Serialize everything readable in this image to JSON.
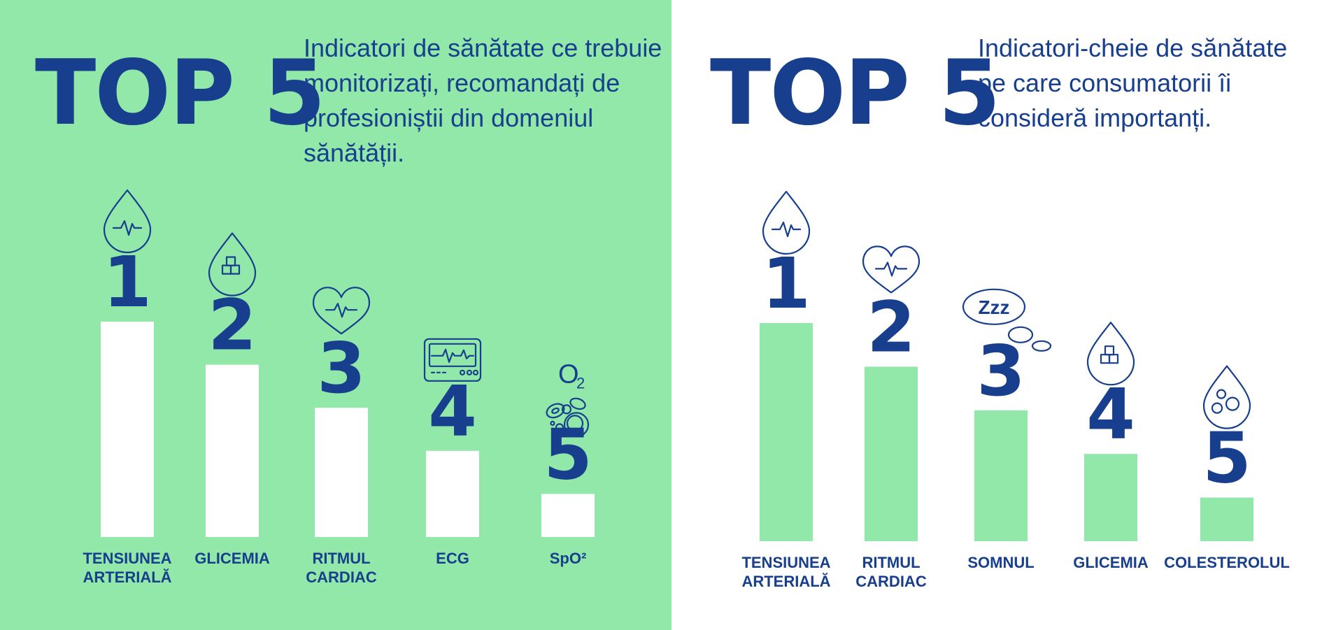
{
  "chart_data": [
    {
      "type": "bar",
      "title": "TOP 5",
      "subtitle": "Indicatori de sănătate ce trebuie monitorizați, recomandați de profesioniștii din domeniul sănătății.",
      "categories": [
        "TENSIUNEA ARTERIALĂ",
        "GLICEMIA",
        "RITMUL CARDIAC",
        "ECG",
        "SpO²"
      ],
      "rank_labels": [
        "1",
        "2",
        "3",
        "4",
        "5"
      ],
      "values": [
        5,
        4,
        3,
        2,
        1
      ],
      "icons": [
        "blood-pressure-drop-icon",
        "glucose-drop-icon",
        "heart-rate-icon",
        "ecg-monitor-icon",
        "oxygen-cells-icon"
      ],
      "icon_text": {
        "oxygen": "O",
        "oxygen_sub": "2"
      },
      "bar_color": "#ffffff",
      "background": "#91e8a9"
    },
    {
      "type": "bar",
      "title": "TOP 5",
      "subtitle": "Indicatori-cheie de sănătate pe care consumatorii îi consideră importanți.",
      "categories": [
        "TENSIUNEA ARTERIALĂ",
        "RITMUL CARDIAC",
        "SOMNUL",
        "GLICEMIA",
        "COLESTEROLUL"
      ],
      "rank_labels": [
        "1",
        "2",
        "3",
        "4",
        "5"
      ],
      "values": [
        5,
        4,
        3,
        2,
        1
      ],
      "icons": [
        "blood-pressure-drop-icon",
        "heart-rate-icon",
        "sleep-bubble-icon",
        "glucose-drop-icon",
        "cholesterol-drop-icon"
      ],
      "icon_text": {
        "sleep": "Zzz"
      },
      "bar_color": "#91e8a9",
      "background": "#ffffff"
    }
  ],
  "colors": {
    "text": "#173f8e",
    "green": "#91e8a9",
    "white": "#ffffff"
  }
}
